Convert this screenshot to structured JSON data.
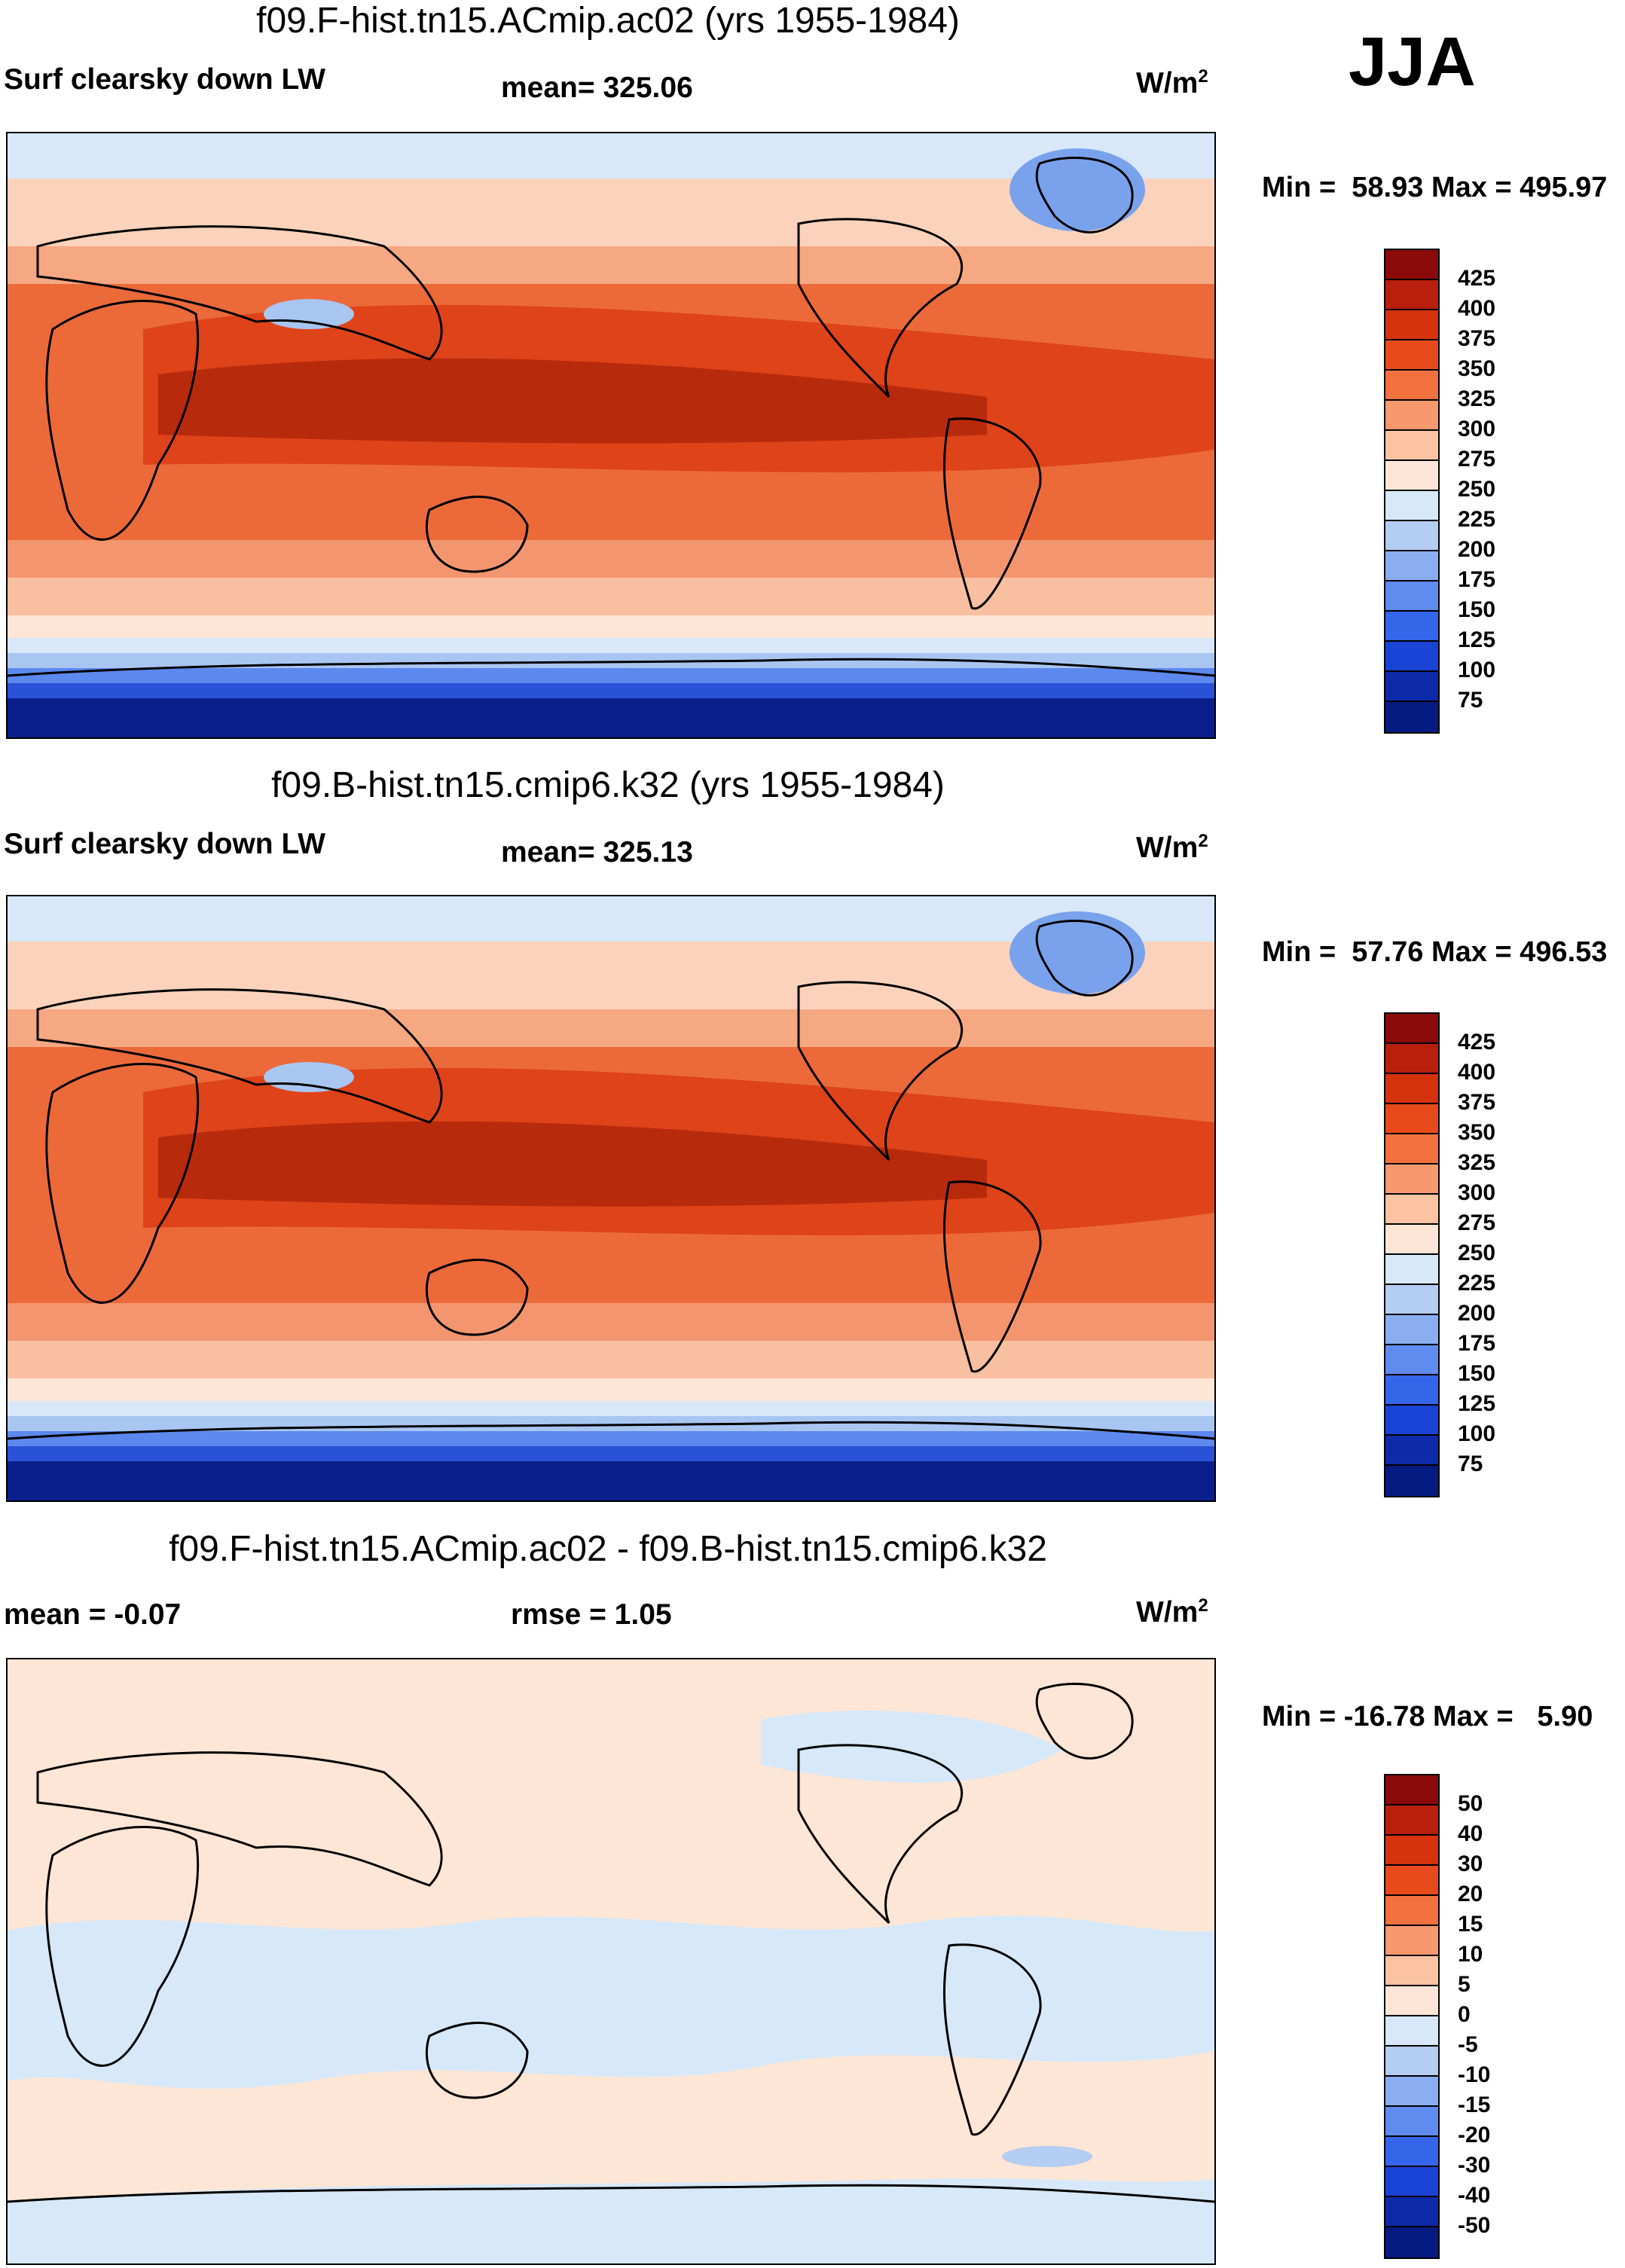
{
  "season": "JJA",
  "panels": [
    {
      "title": "f09.F-hist.tn15.ACmip.ac02 (yrs 1955-1984)",
      "left_label": "Surf clearsky down LW",
      "center_label": "mean= 325.06",
      "units": "W/m",
      "units_exp": "2",
      "minmax": "Min =  58.93 Max = 495.97",
      "colorbar_labels": [
        "425",
        "400",
        "375",
        "350",
        "325",
        "300",
        "275",
        "250",
        "225",
        "200",
        "175",
        "150",
        "125",
        "100",
        "75"
      ]
    },
    {
      "title": "f09.B-hist.tn15.cmip6.k32 (yrs 1955-1984)",
      "left_label": "Surf clearsky down LW",
      "center_label": "mean= 325.13",
      "units": "W/m",
      "units_exp": "2",
      "minmax": "Min =  57.76 Max = 496.53",
      "colorbar_labels": [
        "425",
        "400",
        "375",
        "350",
        "325",
        "300",
        "275",
        "250",
        "225",
        "200",
        "175",
        "150",
        "125",
        "100",
        "75"
      ]
    },
    {
      "title": "f09.F-hist.tn15.ACmip.ac02 - f09.B-hist.tn15.cmip6.k32",
      "left_label": "mean =  -0.07",
      "center_label": "rmse =    1.05",
      "units": "W/m",
      "units_exp": "2",
      "minmax": "Min = -16.78 Max =   5.90",
      "colorbar_labels": [
        "50",
        "40",
        "30",
        "20",
        "15",
        "10",
        "5",
        "0",
        "-5",
        "-10",
        "-15",
        "-20",
        "-30",
        "-40",
        "-50"
      ]
    }
  ],
  "colorbar_colors": [
    "#8b0a0a",
    "#b81f0c",
    "#d5320e",
    "#e94a1c",
    "#f3713f",
    "#f7996f",
    "#fbc3a2",
    "#fde6d6",
    "#d7e8f8",
    "#b4cdf2",
    "#8aaef0",
    "#5f8cee",
    "#3566ea",
    "#1a44d6",
    "#0d2aa8",
    "#061b80"
  ],
  "map_colors": {
    "polar_south": "#0a1f8c",
    "south_1": "#2a52d8",
    "south_2": "#5d88ee",
    "south_3": "#a9c6f3",
    "south_4": "#d8e8f8",
    "mid_1": "#fde6d6",
    "mid_2": "#f8c0a0",
    "mid_3": "#f39670",
    "warm_1": "#ec6a3a",
    "warm_2": "#de4319",
    "tropic": "#b82a0c",
    "north_1": "#f5a882",
    "north_2": "#fbd3bc",
    "north_3": "#dbe9f8",
    "greenland": "#7aa2ec",
    "diff_pos": "#fde6d6",
    "diff_neg": "#d7e8f8",
    "diff_neg2": "#b4cdf2"
  }
}
